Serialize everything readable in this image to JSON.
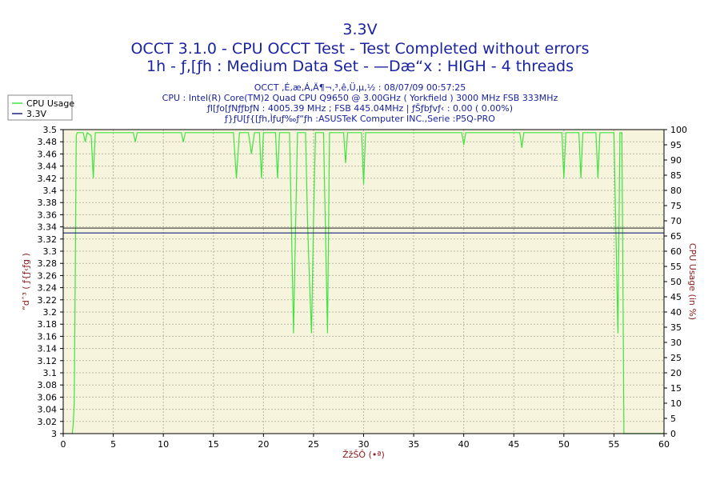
{
  "header": {
    "title1": "3.3V",
    "title2": "OCCT 3.1.0 - CPU OCCT Test - Test Completed without errors",
    "title3": "1h - ƒ‚[ƒh : Medium Data Set - —Dæ“x : HIGH - 4 threads",
    "sub1": "OCCT ‚É‚æ‚Á‚Ä¶¬‚³‚ê‚Ü‚µ‚½ : 08/07/09 00:57:25",
    "sub2": "CPU : Intel(R) Core(TM)2 Quad CPU Q9650 @ 3.00GHz ( Yorkfield ) 3000 MHz FSB 333MHz",
    "sub3": "ƒI[ƒo[ƒNƒƒbƒN : 4005.39 MHz ; FSB 445.04MHz | ƒŠƒbƒvƒ‹ : 0.00 ( 0.00%)",
    "sub4": "ƒ}ƒU[ƒ{[ƒh‚Ìƒuƒ‰ƒ“ƒh :ASUSTeK Computer INC.,Serie :P5Q-PRO"
  },
  "colors": {
    "plot_bg": "#f6f4dc",
    "cpu_usage": "#3fe43f",
    "voltage": "#1a237e",
    "title": "#1a23a0",
    "axis_label": "#8b1a1a"
  },
  "chart_data": {
    "type": "line",
    "x_label": "ŽžŠÔ (•ª)",
    "y_left_label": "“dˆ³ ( ƒ{ƒ‹ƒg )",
    "y_right_label": "CPU Usage (in %)",
    "x_range": [
      0,
      60
    ],
    "y_left_range": [
      3,
      3.5
    ],
    "y_right_range": [
      0,
      100
    ],
    "grid": true,
    "legend_placement": "top-left",
    "x_ticks": [
      "0",
      "5",
      "10",
      "15",
      "20",
      "25",
      "30",
      "35",
      "40",
      "45",
      "50",
      "55",
      "60"
    ],
    "y_left_ticks": [
      "3",
      "3.02",
      "3.04",
      "3.06",
      "3.08",
      "3.1",
      "3.12",
      "3.14",
      "3.16",
      "3.18",
      "3.2",
      "3.22",
      "3.24",
      "3.26",
      "3.28",
      "3.3",
      "3.32",
      "3.34",
      "3.36",
      "3.38",
      "3.4",
      "3.42",
      "3.44",
      "3.46",
      "3.48",
      "3.5"
    ],
    "y_right_ticks": [
      "0",
      "5",
      "10",
      "15",
      "20",
      "25",
      "30",
      "35",
      "40",
      "45",
      "50",
      "55",
      "60",
      "65",
      "70",
      "75",
      "80",
      "85",
      "90",
      "95",
      "100"
    ],
    "series": [
      {
        "name": "CPU Usage",
        "axis": "right",
        "points": [
          [
            0.9,
            0
          ],
          [
            1.0,
            3
          ],
          [
            1.1,
            10
          ],
          [
            1.2,
            50
          ],
          [
            1.3,
            98
          ],
          [
            1.4,
            99
          ],
          [
            2.0,
            99
          ],
          [
            2.2,
            96
          ],
          [
            2.4,
            99
          ],
          [
            2.8,
            98
          ],
          [
            3.0,
            84
          ],
          [
            3.2,
            99
          ],
          [
            7.0,
            99
          ],
          [
            7.2,
            96
          ],
          [
            7.4,
            99
          ],
          [
            11.8,
            99
          ],
          [
            12.0,
            96
          ],
          [
            12.2,
            99
          ],
          [
            17.0,
            99
          ],
          [
            17.3,
            84
          ],
          [
            17.6,
            99
          ],
          [
            18.5,
            99
          ],
          [
            18.8,
            92
          ],
          [
            19.1,
            99
          ],
          [
            19.6,
            99
          ],
          [
            19.8,
            84
          ],
          [
            20.0,
            99
          ],
          [
            21.2,
            99
          ],
          [
            21.4,
            84
          ],
          [
            21.6,
            99
          ],
          [
            22.6,
            99
          ],
          [
            22.8,
            67
          ],
          [
            23.0,
            33
          ],
          [
            23.2,
            67
          ],
          [
            23.4,
            99
          ],
          [
            24.2,
            99
          ],
          [
            24.4,
            70
          ],
          [
            24.6,
            50
          ],
          [
            24.8,
            33
          ],
          [
            25.0,
            70
          ],
          [
            25.2,
            99
          ],
          [
            26.0,
            99
          ],
          [
            26.2,
            66
          ],
          [
            26.4,
            33
          ],
          [
            26.6,
            99
          ],
          [
            28.0,
            99
          ],
          [
            28.2,
            89
          ],
          [
            28.4,
            99
          ],
          [
            29.8,
            99
          ],
          [
            30.0,
            82
          ],
          [
            30.2,
            99
          ],
          [
            39.8,
            99
          ],
          [
            40.0,
            95
          ],
          [
            40.2,
            99
          ],
          [
            45.6,
            99
          ],
          [
            45.8,
            94
          ],
          [
            46.0,
            99
          ],
          [
            49.8,
            99
          ],
          [
            50.0,
            84
          ],
          [
            50.2,
            99
          ],
          [
            51.5,
            99
          ],
          [
            51.7,
            84
          ],
          [
            51.9,
            99
          ],
          [
            53.2,
            99
          ],
          [
            53.4,
            84
          ],
          [
            53.6,
            99
          ],
          [
            55.0,
            99
          ],
          [
            55.2,
            66
          ],
          [
            55.4,
            33
          ],
          [
            55.6,
            99
          ],
          [
            55.8,
            99
          ],
          [
            56.0,
            0
          ],
          [
            60.0,
            0
          ]
        ]
      },
      {
        "name": "3.3V",
        "axis": "left",
        "points": [
          [
            0,
            3.33
          ],
          [
            60,
            3.33
          ]
        ]
      }
    ]
  }
}
